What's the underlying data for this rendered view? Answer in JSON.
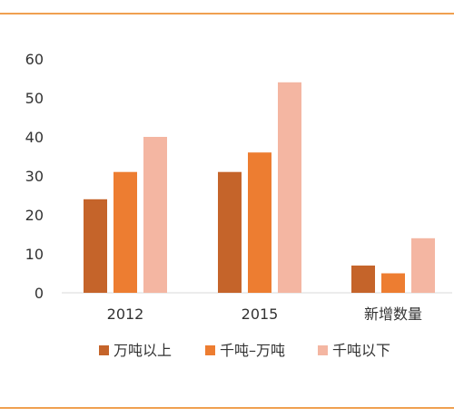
{
  "chart_data": {
    "type": "bar",
    "categories": [
      "2012",
      "2015",
      "新增数量"
    ],
    "series": [
      {
        "name": "万吨以上",
        "values": [
          24,
          31,
          7
        ],
        "color": "#C5642A"
      },
      {
        "name": "千吨–万吨",
        "values": [
          31,
          36,
          5
        ],
        "color": "#ED7D31"
      },
      {
        "name": "千吨以下",
        "values": [
          40,
          54,
          14
        ],
        "color": "#F4B6A2"
      }
    ],
    "title": "",
    "xlabel": "",
    "ylabel": "",
    "ylim": [
      0,
      60
    ],
    "yticks": [
      0,
      10,
      20,
      30,
      40,
      50,
      60
    ],
    "grid": false,
    "legend_position": "bottom",
    "frame_color": "#F0A050"
  }
}
